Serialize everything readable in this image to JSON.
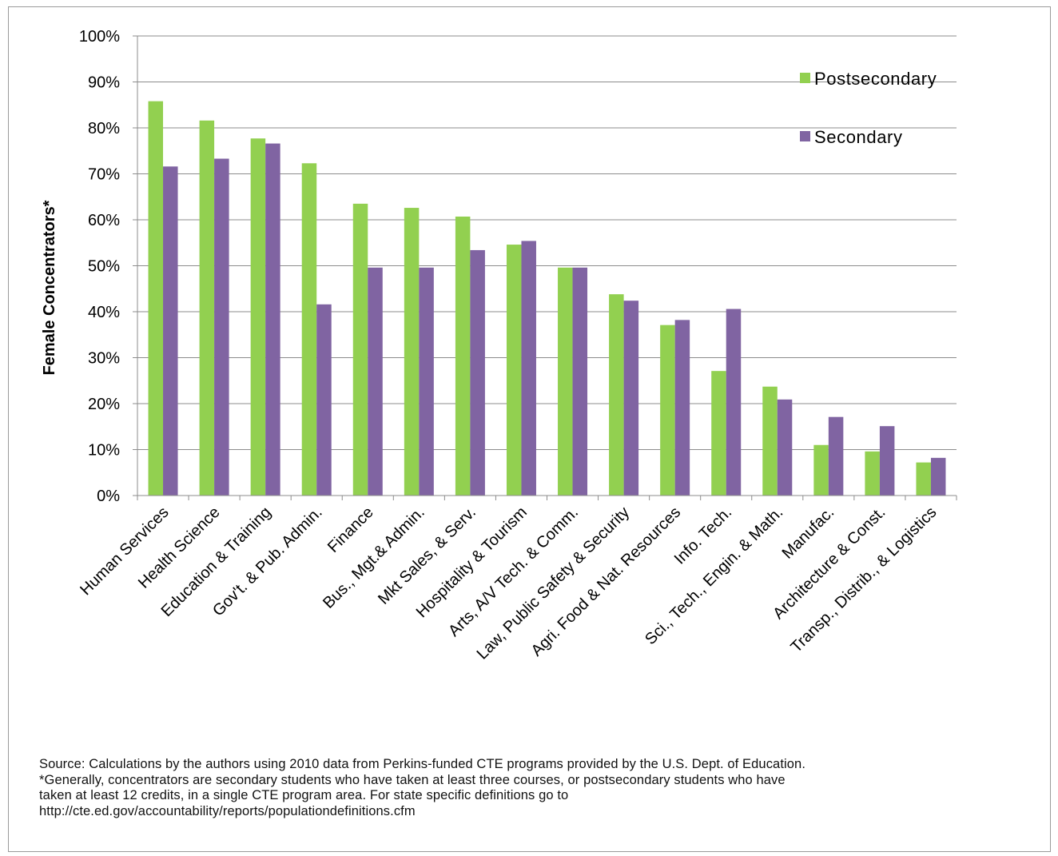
{
  "chart_data": {
    "type": "bar",
    "title": "",
    "xlabel": "",
    "ylabel": "Female Concentrators*",
    "ylim": [
      0,
      100
    ],
    "yticks": [
      "0%",
      "10%",
      "20%",
      "30%",
      "40%",
      "50%",
      "60%",
      "70%",
      "80%",
      "90%",
      "100%"
    ],
    "grid": true,
    "legend_position": "top-right",
    "categories": [
      "Human Services",
      "Health Science",
      "Education & Training",
      "Gov't. & Pub. Admin.",
      "Finance",
      "Bus., Mgt.& Admin.",
      "Mkt Sales, & Serv.",
      "Hospitality & Tourism",
      "Arts, A/V Tech. & Comm.",
      "Law, Public Safety & Security",
      "Agri. Food & Nat. Resources",
      "Info. Tech.",
      "Sci., Tech., Engin. & Math.",
      "Manufac.",
      "Architecture & Const.",
      "Transp., Distrib., & Logistics"
    ],
    "series": [
      {
        "name": "Postsecondary",
        "color": "#92d050",
        "values": [
          85.8,
          81.6,
          77.7,
          72.3,
          63.5,
          62.6,
          60.7,
          54.6,
          49.6,
          43.8,
          37.1,
          27.1,
          23.7,
          11.0,
          9.6,
          7.2
        ]
      },
      {
        "name": "Secondary",
        "color": "#8064a2",
        "values": [
          71.6,
          73.3,
          76.6,
          41.6,
          49.6,
          49.6,
          53.4,
          55.4,
          49.6,
          42.4,
          38.2,
          40.6,
          20.9,
          17.1,
          15.1,
          8.2
        ]
      }
    ]
  },
  "footnote": {
    "line1": "Source: Calculations by the authors using 2010 data from Perkins-funded CTE programs provided by the U.S. Dept. of Education.",
    "line2": "*Generally, concentrators are secondary students who have taken at least three courses, or postsecondary students who have",
    "line3": "taken at least 12 credits, in a single CTE program area. For state specific definitions go to",
    "line4": "http://cte.ed.gov/accountability/reports/populationdefinitions.cfm"
  }
}
